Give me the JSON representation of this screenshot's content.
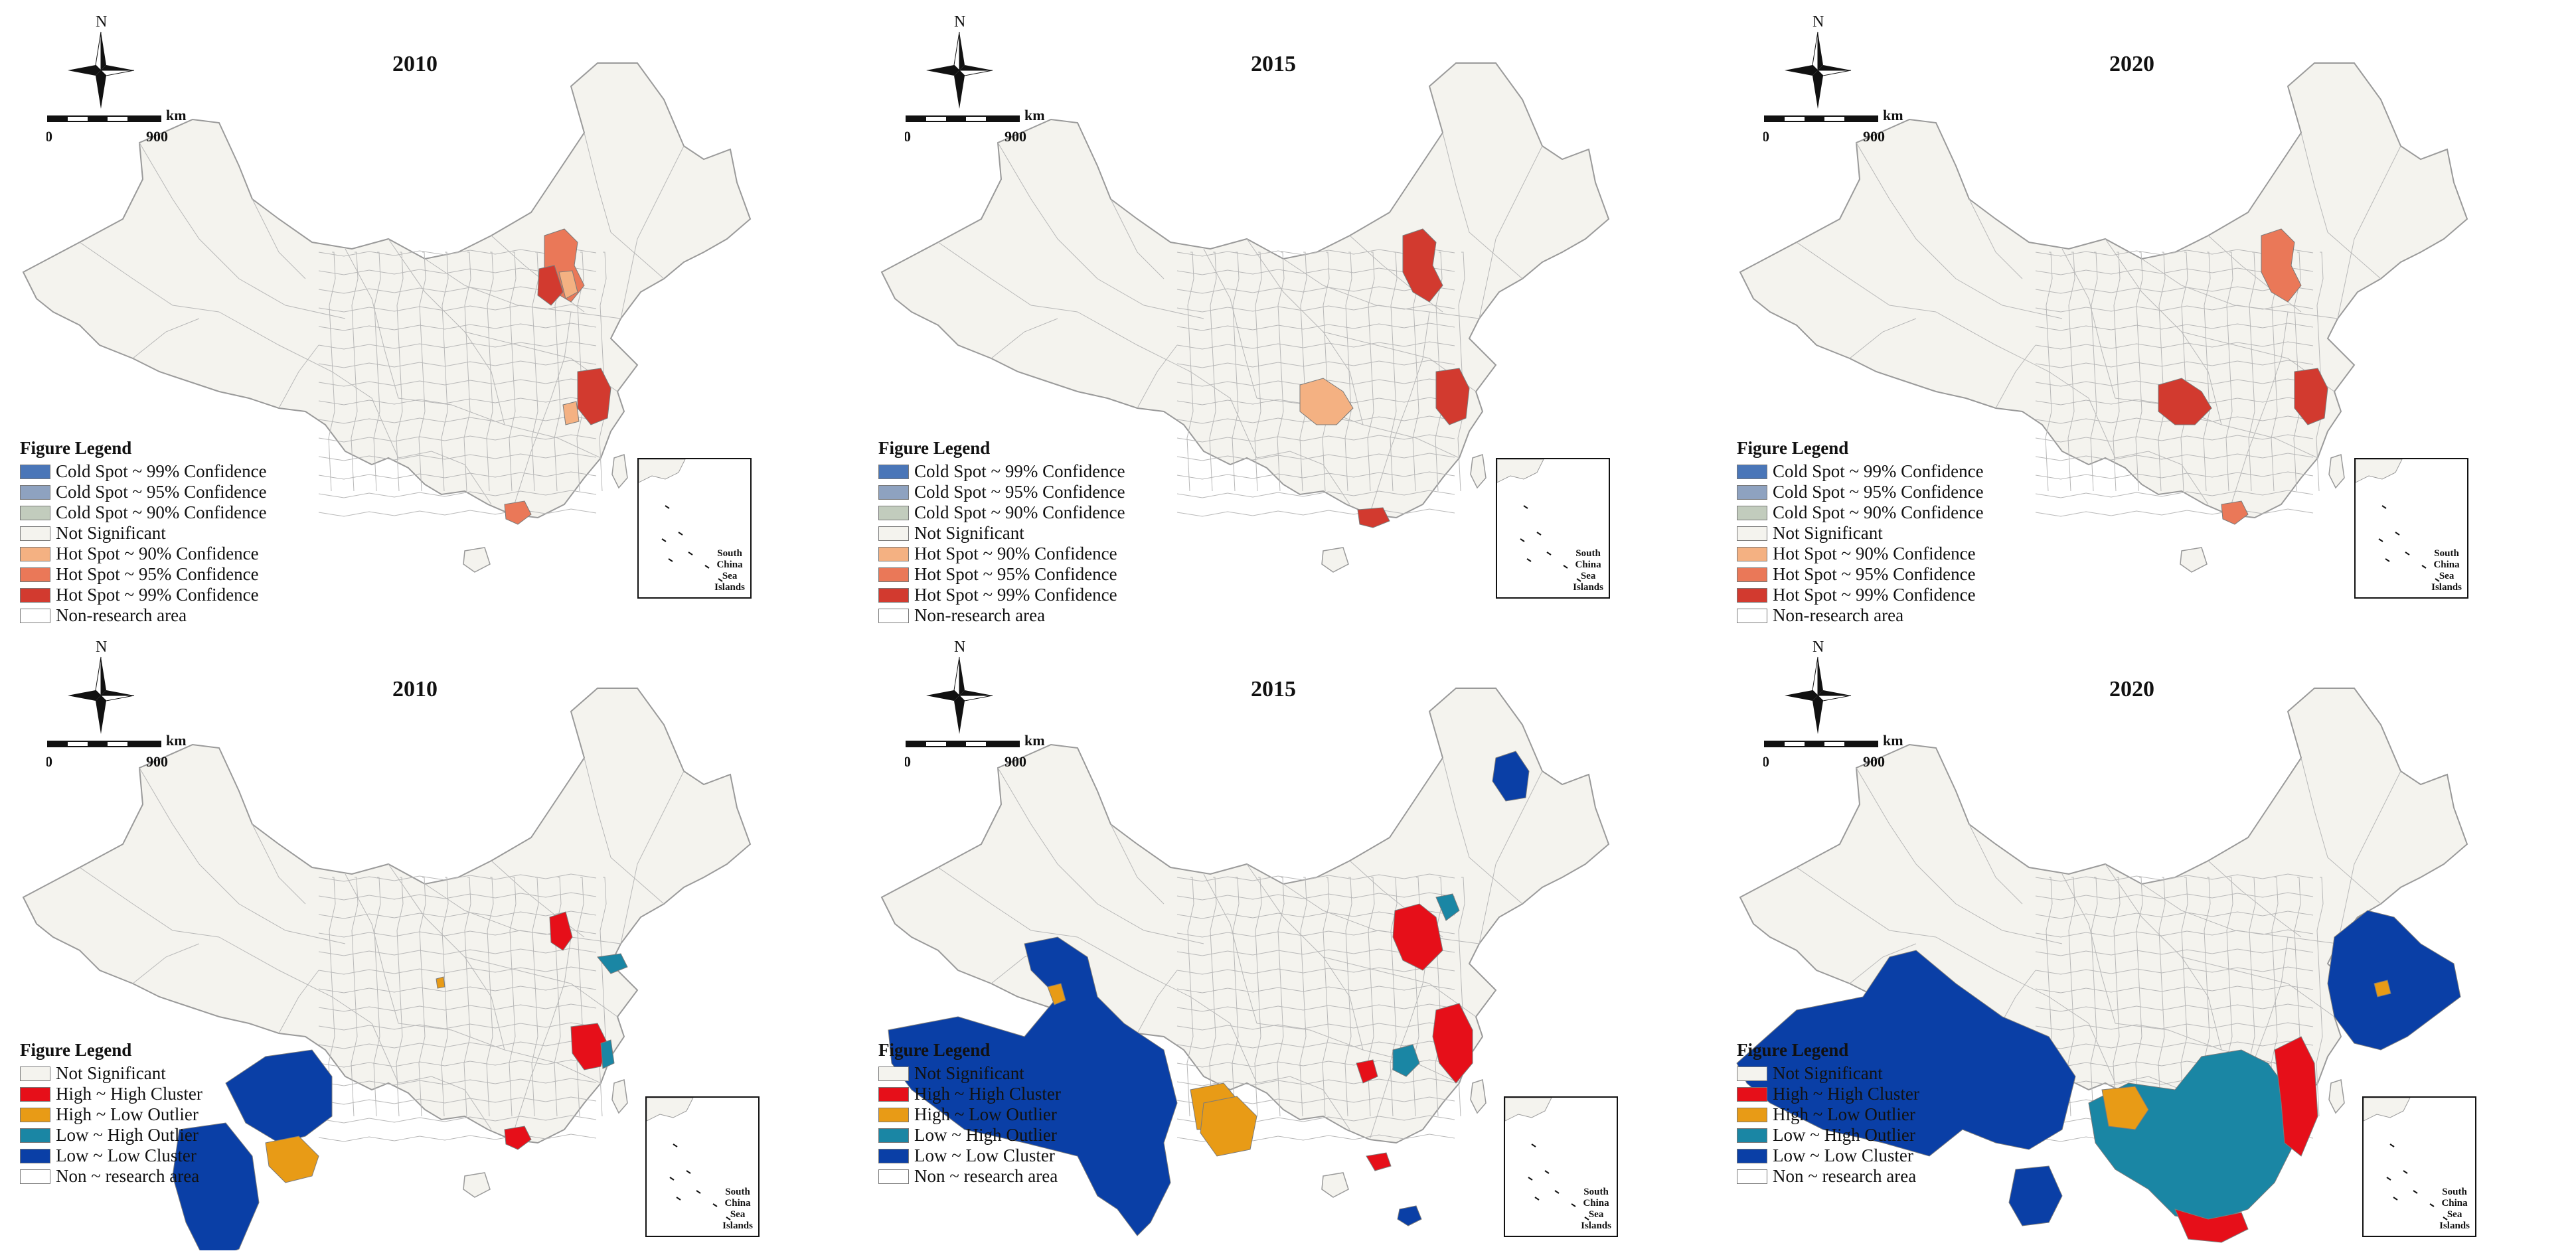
{
  "north_label": "N",
  "scale": {
    "unit": "km",
    "start": "0",
    "end": "900"
  },
  "inset_label": [
    "South",
    "China",
    "Sea",
    "Islands"
  ],
  "colors": {
    "cold99": "#4a76b8",
    "cold95": "#8ea2c0",
    "cold90": "#c2ccbd",
    "notsig": "#f4f3ee",
    "hot90": "#f4b182",
    "hot95": "#ea7858",
    "hot99": "#d23a2f",
    "nonresearch": "#ffffff",
    "hh": "#e60f19",
    "hl": "#e89b16",
    "lh": "#1a86a4",
    "ll": "#0a3fa6",
    "border": "#9a9a9a"
  },
  "hotspot_legend": {
    "title": "Figure Legend",
    "items": [
      {
        "label": "Cold Spot ~ 99% Confidence",
        "color": "#4a76b8"
      },
      {
        "label": "Cold Spot ~ 95% Confidence",
        "color": "#8ea2c0"
      },
      {
        "label": "Cold Spot ~ 90% Confidence",
        "color": "#c2ccbd"
      },
      {
        "label": "Not Significant",
        "color": "#f4f3ee"
      },
      {
        "label": "Hot Spot ~ 90% Confidence",
        "color": "#f4b182"
      },
      {
        "label": "Hot Spot ~ 95% Confidence",
        "color": "#ea7858"
      },
      {
        "label": "Hot Spot ~ 99% Confidence",
        "color": "#d23a2f"
      },
      {
        "label": "Non-research area",
        "color": "#ffffff"
      }
    ]
  },
  "lisa_legend": {
    "title": "Figure Legend",
    "items": [
      {
        "label": "Not Significant",
        "color": "#f4f3ee"
      },
      {
        "label": "High ~ High Cluster",
        "color": "#e60f19"
      },
      {
        "label": "High ~ Low Outlier",
        "color": "#e89b16"
      },
      {
        "label": "Low ~ High Outlier",
        "color": "#1a86a4"
      },
      {
        "label": "Low ~ Low Cluster",
        "color": "#0a3fa6"
      },
      {
        "label": "Non ~ research area",
        "color": "#ffffff"
      }
    ]
  },
  "panels": [
    {
      "id": "hotspot-2010",
      "year": "2010",
      "legend": "hotspot_legend",
      "regions": [
        {
          "name": "beijing-tianjin",
          "class": "hot95"
        },
        {
          "name": "hebei-north",
          "class": "hot99"
        },
        {
          "name": "hebei-south",
          "class": "hot90"
        },
        {
          "name": "yangtze-delta",
          "class": "hot99"
        },
        {
          "name": "zhejiang-west",
          "class": "hot90"
        },
        {
          "name": "pearl-delta",
          "class": "hot95"
        }
      ]
    },
    {
      "id": "hotspot-2015",
      "year": "2015",
      "legend": "hotspot_legend",
      "regions": [
        {
          "name": "beijing-tianjin",
          "class": "hot99"
        },
        {
          "name": "central-hubei",
          "class": "hot90"
        },
        {
          "name": "yangtze-delta",
          "class": "hot99"
        },
        {
          "name": "pearl-delta",
          "class": "hot99"
        }
      ]
    },
    {
      "id": "hotspot-2020",
      "year": "2020",
      "legend": "hotspot_legend",
      "regions": [
        {
          "name": "beijing-tianjin",
          "class": "hot95"
        },
        {
          "name": "central-hubei",
          "class": "hot99"
        },
        {
          "name": "yangtze-delta",
          "class": "hot99"
        },
        {
          "name": "pearl-delta",
          "class": "hot95"
        }
      ]
    },
    {
      "id": "lisa-2010",
      "year": "2010",
      "legend": "lisa_legend",
      "regions": [
        {
          "name": "tibet-east",
          "class": "ll"
        },
        {
          "name": "sichuan-west",
          "class": "ll"
        },
        {
          "name": "sichuan-basin",
          "class": "hl"
        },
        {
          "name": "beijing",
          "class": "hh"
        },
        {
          "name": "shandong",
          "class": "lh"
        },
        {
          "name": "shanghai",
          "class": "hh"
        },
        {
          "name": "shanghai-ring",
          "class": "lh"
        },
        {
          "name": "gansu-dot",
          "class": "hl"
        },
        {
          "name": "pearl-delta",
          "class": "hh"
        }
      ]
    },
    {
      "id": "lisa-2015",
      "year": "2015",
      "legend": "lisa_legend",
      "regions": [
        {
          "name": "xinjiang-tibet",
          "class": "ll"
        },
        {
          "name": "heilongjiang-north",
          "class": "ll"
        },
        {
          "name": "beijing-hebei",
          "class": "hh"
        },
        {
          "name": "beijing-ring",
          "class": "lh"
        },
        {
          "name": "xinjiang-north-dot",
          "class": "hl"
        },
        {
          "name": "sichuan-basin",
          "class": "hl"
        },
        {
          "name": "hunan",
          "class": "hl"
        },
        {
          "name": "yangtze-delta",
          "class": "hh"
        },
        {
          "name": "anhui",
          "class": "lh"
        },
        {
          "name": "wuhan",
          "class": "hh"
        },
        {
          "name": "hainan",
          "class": "ll"
        },
        {
          "name": "pearl-delta",
          "class": "hh"
        }
      ]
    },
    {
      "id": "lisa-2020",
      "year": "2020",
      "legend": "lisa_legend",
      "regions": [
        {
          "name": "west-china",
          "class": "ll"
        },
        {
          "name": "northeast",
          "class": "ll"
        },
        {
          "name": "central-east",
          "class": "lh"
        },
        {
          "name": "east-coast",
          "class": "hh"
        },
        {
          "name": "south-coast",
          "class": "hh"
        },
        {
          "name": "sichuan-basin",
          "class": "hl"
        },
        {
          "name": "jilin-dot",
          "class": "hl"
        },
        {
          "name": "yunnan",
          "class": "ll"
        },
        {
          "name": "hainan",
          "class": "lh"
        }
      ]
    }
  ]
}
